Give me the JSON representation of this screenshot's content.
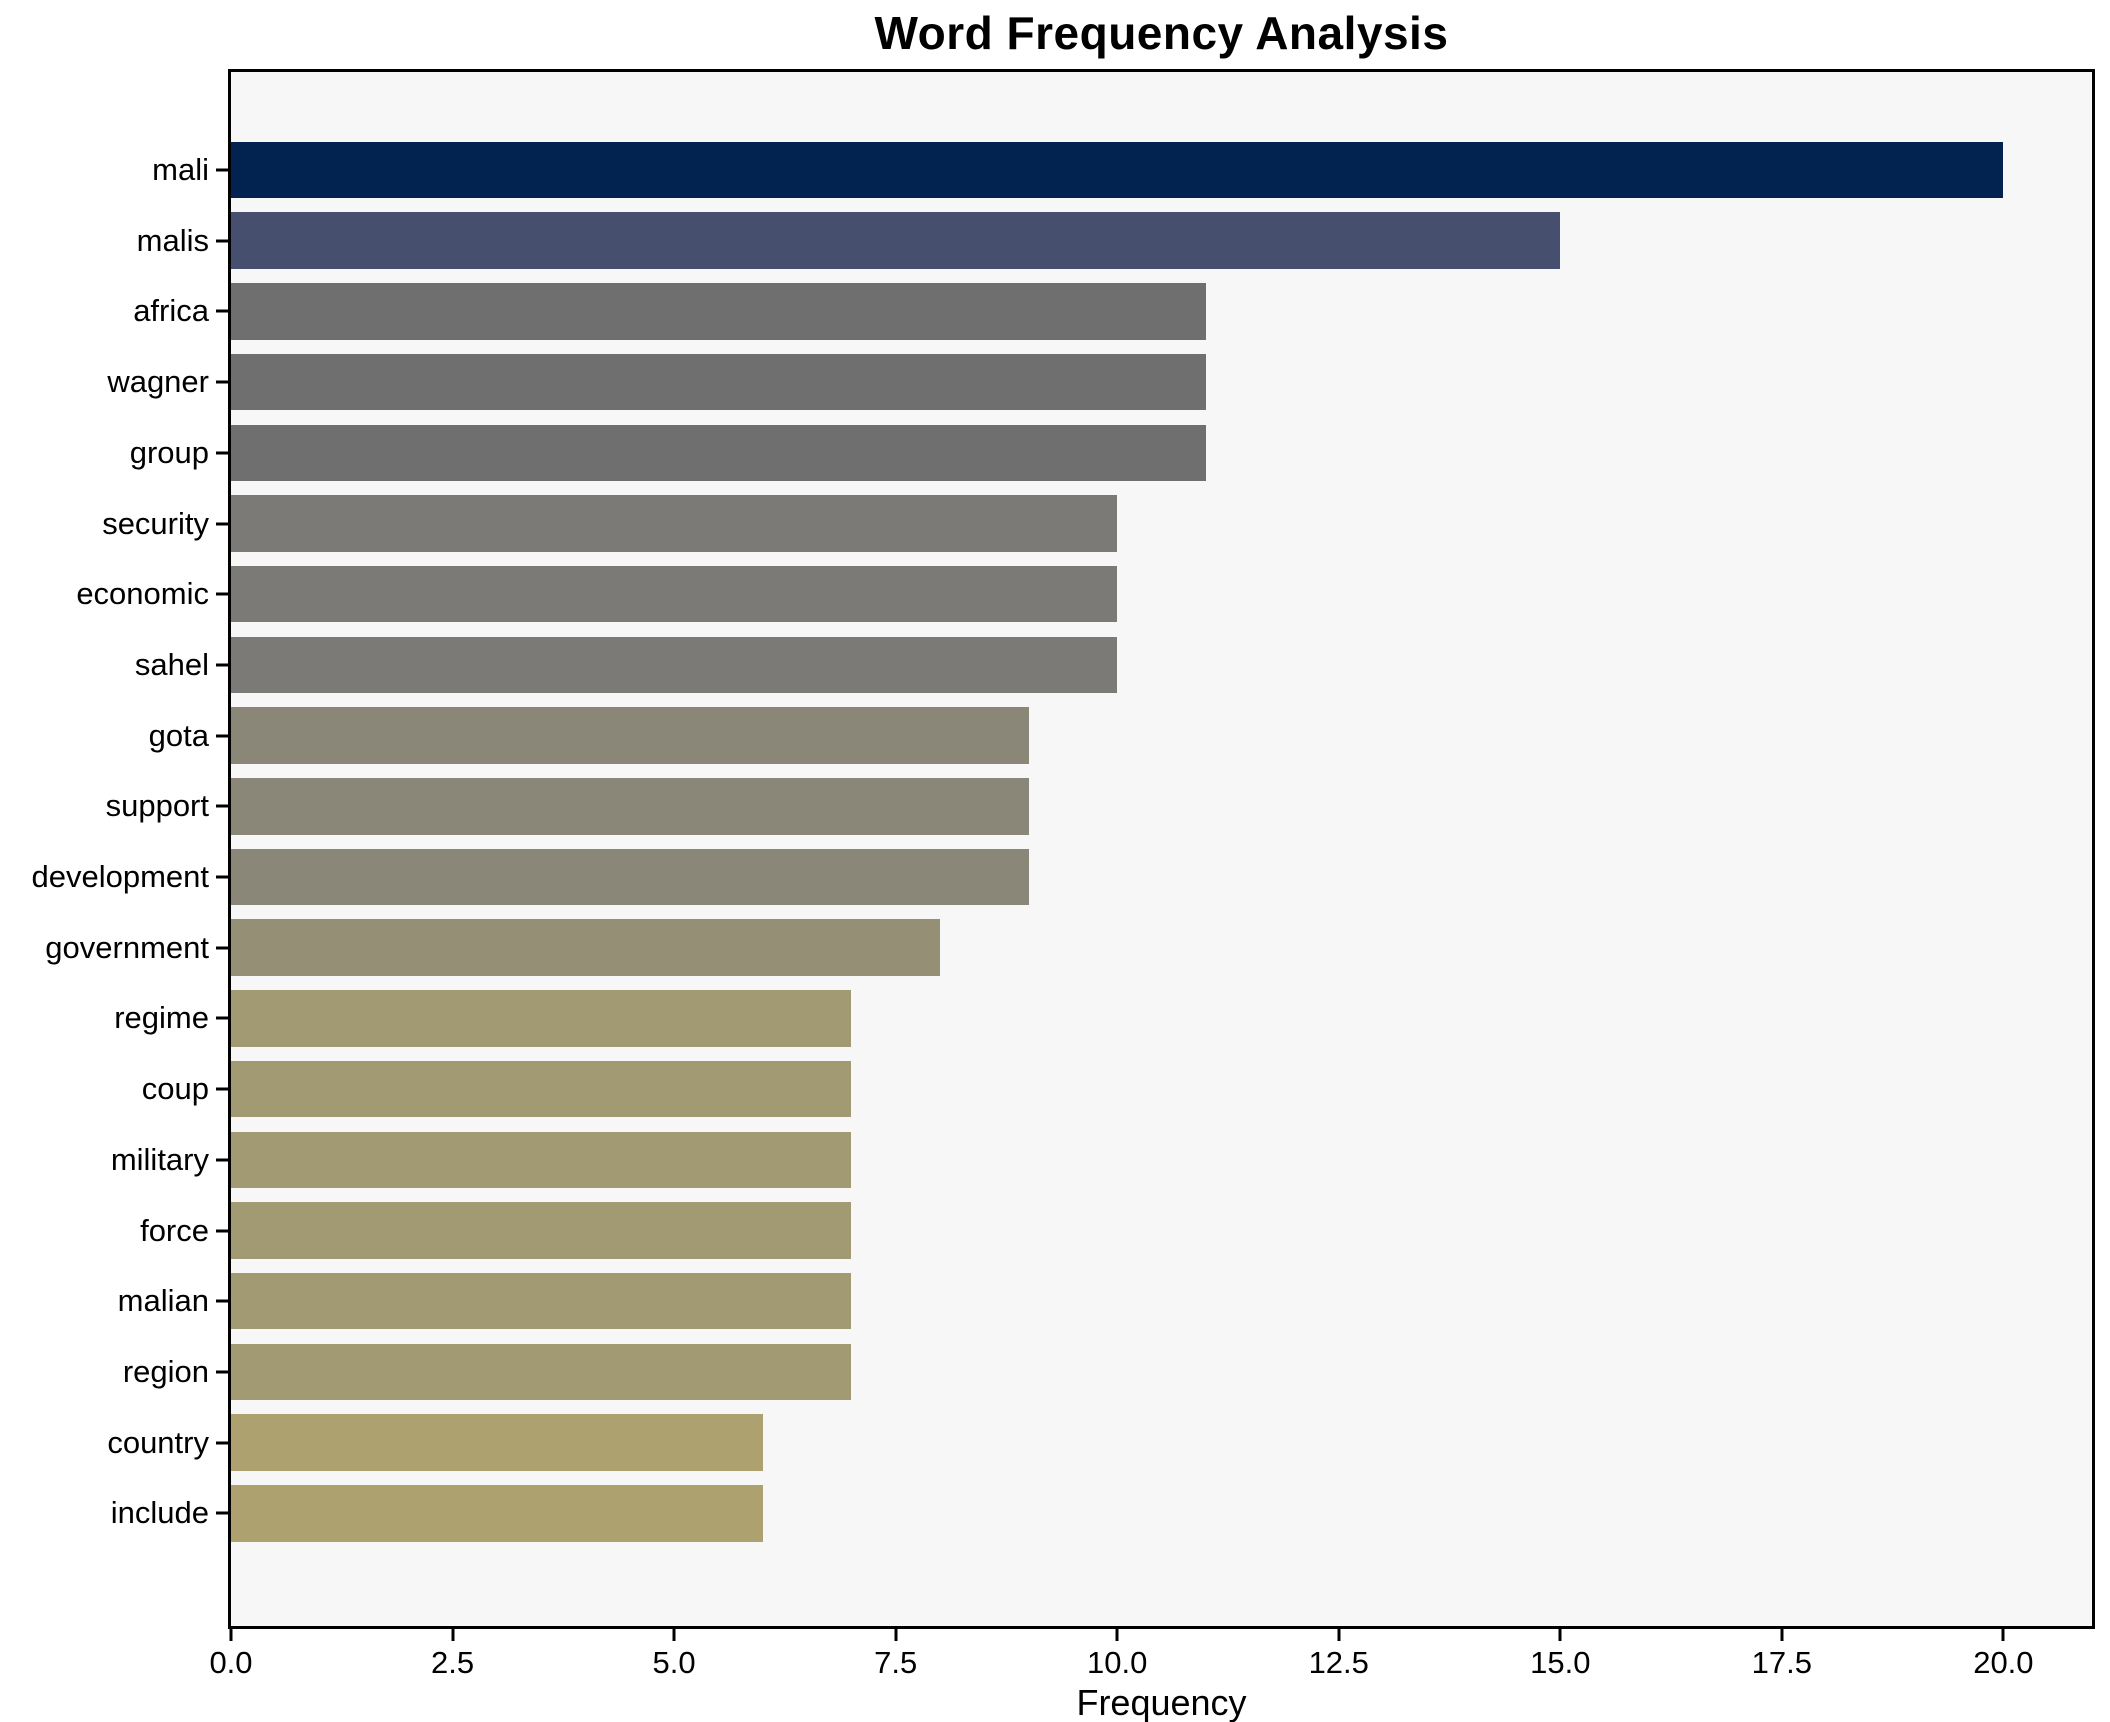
{
  "chart_data": {
    "type": "bar",
    "orientation": "horizontal",
    "title": "Word Frequency Analysis",
    "xlabel": "Frequency",
    "ylabel": "",
    "categories": [
      "mali",
      "malis",
      "africa",
      "wagner",
      "group",
      "security",
      "economic",
      "sahel",
      "gota",
      "support",
      "development",
      "government",
      "regime",
      "coup",
      "military",
      "force",
      "malian",
      "region",
      "country",
      "include"
    ],
    "values": [
      20,
      15,
      11,
      11,
      11,
      10,
      10,
      10,
      9,
      9,
      9,
      8,
      7,
      7,
      7,
      7,
      7,
      7,
      6,
      6
    ],
    "bar_colors": [
      "#02234f",
      "#464f6d",
      "#6f6f70",
      "#6f6f70",
      "#6f6f70",
      "#7b7a77",
      "#7b7a77",
      "#7b7a77",
      "#8a8678",
      "#8a8678",
      "#8a8678",
      "#948f75",
      "#a19a73",
      "#a19a73",
      "#a19a73",
      "#a19a73",
      "#a19a73",
      "#a19a73",
      "#ada26f",
      "#ada26f"
    ],
    "xlim": [
      0,
      21
    ],
    "xticks": [
      0,
      2.5,
      5,
      7.5,
      10,
      12.5,
      15,
      17.5,
      20
    ],
    "xtick_labels": [
      "0.0",
      "2.5",
      "5.0",
      "7.5",
      "10.0",
      "12.5",
      "15.0",
      "17.5",
      "20.0"
    ],
    "grid": false,
    "legend_position": "none",
    "plot_background": "#f7f7f8",
    "figure_background": "#ffffff",
    "spine_color": "#000000"
  }
}
